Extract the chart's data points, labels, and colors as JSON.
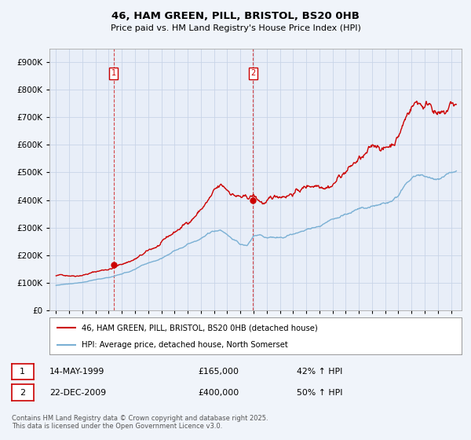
{
  "title": "46, HAM GREEN, PILL, BRISTOL, BS20 0HB",
  "subtitle": "Price paid vs. HM Land Registry's House Price Index (HPI)",
  "ylim": [
    0,
    950000
  ],
  "yticks": [
    0,
    100000,
    200000,
    300000,
    400000,
    500000,
    600000,
    700000,
    800000,
    900000
  ],
  "red_line_color": "#cc0000",
  "blue_line_color": "#7ab0d4",
  "marker1_year": 1999.37,
  "marker1_value": 165000,
  "marker2_year": 2009.97,
  "marker2_value": 400000,
  "vline_color": "#cc0000",
  "legend_red": "46, HAM GREEN, PILL, BRISTOL, BS20 0HB (detached house)",
  "legend_blue": "HPI: Average price, detached house, North Somerset",
  "table_row1": [
    "1",
    "14-MAY-1999",
    "£165,000",
    "42% ↑ HPI"
  ],
  "table_row2": [
    "2",
    "22-DEC-2009",
    "£400,000",
    "50% ↑ HPI"
  ],
  "footer": "Contains HM Land Registry data © Crown copyright and database right 2025.\nThis data is licensed under the Open Government Licence v3.0.",
  "background_color": "#f0f4fa",
  "plot_bg_color": "#e8eef8",
  "grid_color": "#c8d4e8"
}
